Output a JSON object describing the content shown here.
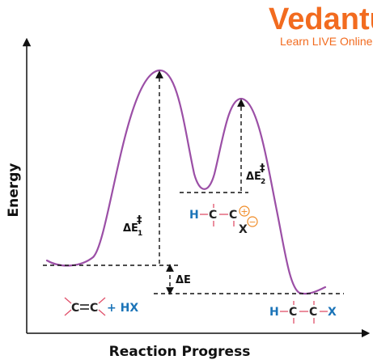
{
  "logo": {
    "brand": "Vedantu",
    "tagline": "Learn LIVE Online"
  },
  "axes": {
    "y_label": "Energy",
    "x_label": "Reaction Progress"
  },
  "labels": {
    "delta_e1": "ΔE",
    "delta_e1_sub": "1",
    "double_dagger": "‡",
    "delta_e2": "ΔE",
    "delta_e2_sub": "2",
    "delta_e": "ΔE"
  },
  "reactant": {
    "c1": "C",
    "c2": "C",
    "reagent": "+ HX"
  },
  "intermediate": {
    "h": "H",
    "c1": "C",
    "c2": "C",
    "x": "X",
    "plus": "+",
    "minus": "−"
  },
  "product": {
    "h": "H",
    "c1": "C",
    "c2": "C",
    "x": "X"
  },
  "colors": {
    "curve": "#9b4fa6",
    "blue": "#1b74b8",
    "orange": "#f26b1f",
    "bond": "#e0506a"
  }
}
